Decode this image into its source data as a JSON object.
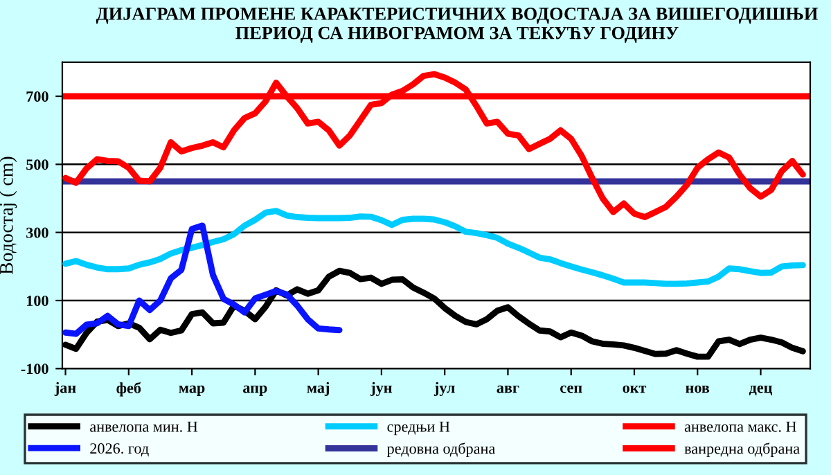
{
  "chart_data": {
    "type": "line",
    "title": "ДИЈАГРАМ ПРОМЕНЕ КАРАКТЕРИСТИЧНИХ ВОДОСТАЈА ЗА ВИШЕГОДИШЊИ ПЕРИОД СА НИВОГРАМОМ ЗА ТЕКУЋУ ГОДИНУ",
    "ylabel": "Водостај ( cm)",
    "categories": [
      "јан",
      null,
      null,
      null,
      null,
      null,
      "феб",
      null,
      null,
      null,
      null,
      null,
      "мар",
      null,
      null,
      null,
      null,
      null,
      "апр",
      null,
      null,
      null,
      null,
      null,
      "мај",
      null,
      null,
      null,
      null,
      null,
      "јун",
      null,
      null,
      null,
      null,
      null,
      "јул",
      null,
      null,
      null,
      null,
      null,
      "авг",
      null,
      null,
      null,
      null,
      null,
      "сеп",
      null,
      null,
      null,
      null,
      null,
      "окт",
      null,
      null,
      null,
      null,
      null,
      "нов",
      null,
      null,
      null,
      null,
      null,
      "дец",
      null,
      null,
      null,
      null
    ],
    "ylim": [
      -100,
      800
    ],
    "yticks": [
      -100,
      100,
      300,
      500,
      700
    ],
    "grid": "y",
    "legend": "bottom",
    "line_style": "solid",
    "series": [
      {
        "name": "анвелопа мин. Н",
        "color": "#000000",
        "values": [
          -30,
          -42,
          5,
          38,
          43,
          25,
          33,
          20,
          -14,
          14,
          5,
          12,
          60,
          65,
          33,
          35,
          85,
          70,
          45,
          82,
          130,
          115,
          133,
          120,
          130,
          170,
          187,
          181,
          163,
          167,
          149,
          161,
          162,
          138,
          123,
          106,
          78,
          55,
          37,
          30,
          45,
          70,
          80,
          54,
          32,
          12,
          9,
          -8,
          6,
          -3,
          -20,
          -27,
          -29,
          -32,
          -39,
          -48,
          -57,
          -56,
          -46,
          -56,
          -65,
          -65,
          -20,
          -15,
          -28,
          -15,
          -9,
          -15,
          -23,
          -39,
          -49
        ]
      },
      {
        "name": "средњи Н",
        "color": "#00ccff",
        "values": [
          208,
          216,
          205,
          197,
          192,
          192,
          194,
          205,
          212,
          222,
          238,
          248,
          255,
          263,
          272,
          280,
          295,
          320,
          337,
          358,
          363,
          350,
          345,
          343,
          342,
          342,
          342,
          343,
          347,
          346,
          336,
          322,
          337,
          340,
          340,
          338,
          330,
          318,
          302,
          298,
          292,
          284,
          267,
          255,
          241,
          226,
          221,
          210,
          200,
          191,
          183,
          174,
          164,
          153,
          153,
          153,
          151,
          149,
          149,
          150,
          153,
          156,
          170,
          194,
          192,
          186,
          181,
          182,
          200,
          203,
          204
        ]
      },
      {
        "name": "анвелопа макс. Н",
        "color": "#ff0000",
        "values": [
          460,
          446,
          488,
          515,
          510,
          509,
          490,
          452,
          450,
          490,
          565,
          538,
          548,
          555,
          565,
          550,
          600,
          636,
          650,
          685,
          740,
          700,
          665,
          620,
          625,
          600,
          555,
          585,
          630,
          675,
          680,
          705,
          716,
          735,
          760,
          765,
          755,
          740,
          720,
          672,
          620,
          625,
          590,
          585,
          545,
          560,
          575,
          600,
          575,
          525,
          460,
          400,
          360,
          385,
          355,
          345,
          360,
          375,
          405,
          440,
          490,
          515,
          535,
          520,
          470,
          430,
          405,
          425,
          480,
          510,
          470
        ]
      },
      {
        "name": "2026. год",
        "color": "#0a14ff",
        "values": [
          6,
          2,
          29,
          33,
          55,
          30,
          25,
          100,
          72,
          100,
          165,
          190,
          310,
          320,
          175,
          105,
          88,
          65,
          106,
          117,
          128,
          118,
          85,
          45,
          18,
          15,
          13,
          null,
          null,
          null,
          null,
          null,
          null,
          null,
          null,
          null,
          null,
          null,
          null,
          null,
          null,
          null,
          null,
          null,
          null,
          null,
          null,
          null,
          null,
          null,
          null,
          null,
          null,
          null,
          null,
          null,
          null,
          null,
          null,
          null,
          null,
          null,
          null,
          null,
          null,
          null,
          null,
          null,
          null,
          null,
          null
        ]
      }
    ],
    "ref_lines": [
      {
        "axis": "y",
        "value": 450,
        "label": "редовна одбрана",
        "color": "#333399"
      },
      {
        "axis": "y",
        "value": 700,
        "label": "ванредна одбрана",
        "color": "#ff0000"
      }
    ]
  }
}
